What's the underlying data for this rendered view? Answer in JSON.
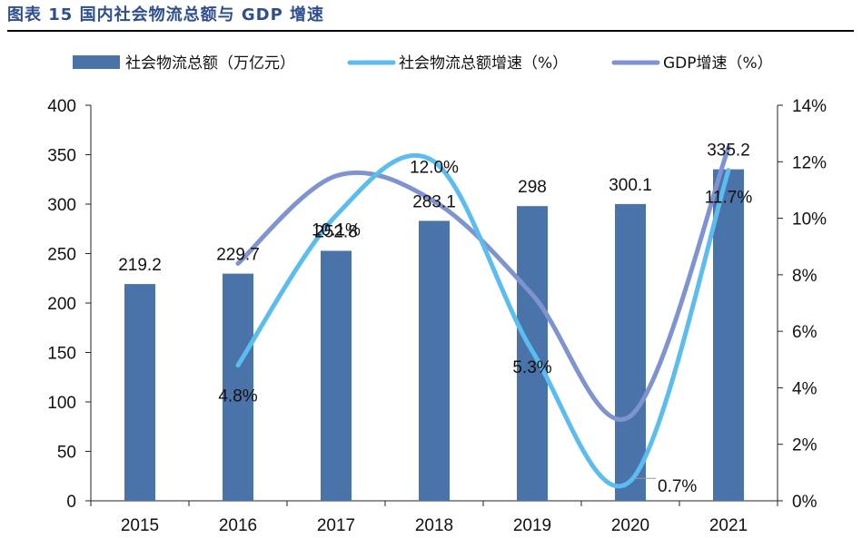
{
  "figure": {
    "title": "图表 15 国内社会物流总额与 GDP 增速"
  },
  "chart_data": {
    "type": "bar",
    "categories": [
      "2015",
      "2016",
      "2017",
      "2018",
      "2019",
      "2020",
      "2021"
    ],
    "series": [
      {
        "name": "社会物流总额（万亿元）",
        "type": "bar",
        "axis": "left",
        "color": "#4a73aa",
        "values": [
          219.2,
          229.7,
          252.8,
          283.1,
          298,
          300.1,
          335.2
        ],
        "labels": [
          "219.2",
          "229.7",
          "252.8",
          "283.1",
          "298",
          "300.1",
          "335.2"
        ]
      },
      {
        "name": "社会物流总额增速（%）",
        "type": "line",
        "axis": "right",
        "color": "#5bbcf0",
        "values": [
          null,
          4.8,
          10.1,
          12.0,
          5.3,
          0.7,
          11.7
        ],
        "labels": [
          null,
          "4.8%",
          "10.1%",
          "12.0%",
          "5.3%",
          "0.7%",
          "11.7%"
        ]
      },
      {
        "name": "GDP增速（%）",
        "type": "line",
        "axis": "right",
        "color": "#7e93d0",
        "values": [
          null,
          8.4,
          11.5,
          10.6,
          7.3,
          3.0,
          12.5
        ],
        "labels": []
      }
    ],
    "y_left": {
      "min": 0,
      "max": 400,
      "ticks": [
        "0",
        "50",
        "100",
        "150",
        "200",
        "250",
        "300",
        "350",
        "400"
      ]
    },
    "y_right": {
      "min": 0,
      "max": 14,
      "ticks": [
        "0%",
        "2%",
        "4%",
        "6%",
        "8%",
        "10%",
        "12%",
        "14%"
      ]
    },
    "legend_position": "top",
    "grid": false
  }
}
